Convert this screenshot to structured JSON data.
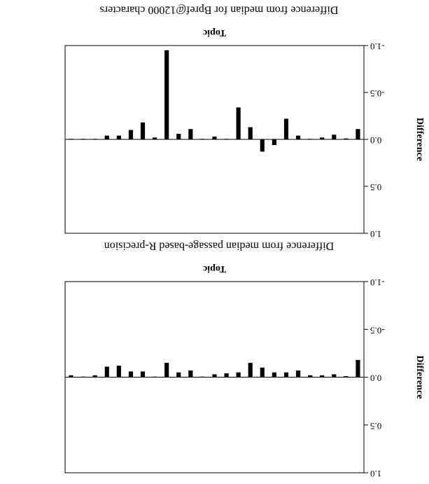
{
  "chart_data": [
    {
      "type": "bar",
      "title": "Difference from median passage-based R-precision",
      "xlabel": "Topic",
      "ylabel": "Difference",
      "values": [
        -0.18,
        -0.01,
        -0.03,
        -0.02,
        -0.02,
        -0.07,
        -0.05,
        -0.05,
        -0.1,
        -0.15,
        -0.05,
        -0.04,
        -0.03,
        0,
        -0.07,
        -0.05,
        -0.15,
        0,
        -0.06,
        -0.06,
        -0.12,
        -0.11,
        -0.02,
        0,
        -0.02
      ],
      "color": "#000000",
      "ylim": [
        -1,
        1
      ],
      "yticks": [
        {
          "value": -1,
          "label": "-1.0"
        },
        {
          "value": -0.5,
          "label": "-0.5"
        },
        {
          "value": 0,
          "label": "0.0"
        },
        {
          "value": 0.5,
          "label": "0.5"
        },
        {
          "value": 1,
          "label": "1.0"
        }
      ]
    },
    {
      "type": "bar",
      "title": "Difference from median for Bpref@12000 characters",
      "xlabel": "Topic",
      "ylabel": "Difference",
      "values": [
        -0.11,
        -0.01,
        -0.05,
        -0.02,
        0,
        -0.04,
        -0.22,
        0.06,
        0.13,
        -0.13,
        -0.34,
        0,
        -0.03,
        0,
        -0.11,
        -0.06,
        -0.95,
        -0.02,
        -0.18,
        -0.1,
        -0.04,
        -0.04,
        0,
        0,
        0
      ],
      "color": "#000000",
      "ylim": [
        -1,
        1
      ],
      "yticks": [
        {
          "value": -1,
          "label": "-1.0"
        },
        {
          "value": -0.5,
          "label": "-0.5"
        },
        {
          "value": 0,
          "label": "0.0"
        },
        {
          "value": 0.5,
          "label": "0.5"
        },
        {
          "value": 1,
          "label": "1.0"
        }
      ]
    }
  ]
}
